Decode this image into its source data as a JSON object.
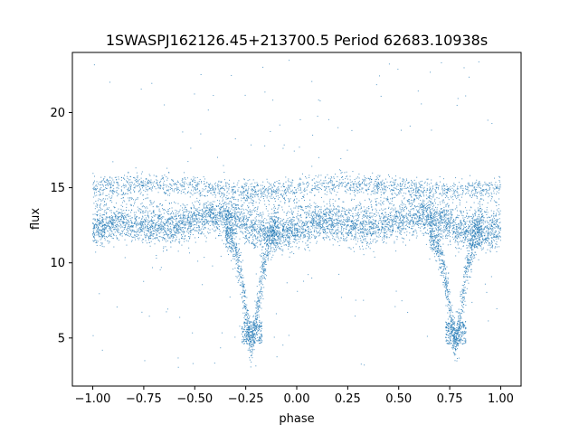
{
  "chart_data": {
    "type": "scatter",
    "title": "1SWASPJ162126.45+213700.5 Period 62683.10938s",
    "xlabel": "phase",
    "ylabel": "flux",
    "xlim": [
      -1.1,
      1.1
    ],
    "ylim": [
      1.8,
      24.0
    ],
    "x_ticks": [
      -1.0,
      -0.75,
      -0.5,
      -0.25,
      0.0,
      0.25,
      0.5,
      0.75,
      1.0
    ],
    "x_tick_labels": [
      "−1.00",
      "−0.75",
      "−0.50",
      "−0.25",
      "0.00",
      "0.25",
      "0.50",
      "0.75",
      "1.00"
    ],
    "y_ticks": [
      5,
      10,
      15,
      20
    ],
    "y_tick_labels": [
      "5",
      "10",
      "15",
      "20"
    ],
    "grid": false,
    "marker_color": "#1f77b4",
    "series": [
      {
        "description_of_shape": "phase-folded light curve, plotted twice over phase -1 to 1",
        "upper_band": {
          "flux_center": 15.0,
          "spread": 0.35,
          "phase_range": [
            -1.0,
            1.0
          ]
        },
        "main_band": {
          "flux_center": 12.5,
          "spread": 0.6,
          "phase_range": [
            -1.0,
            1.0
          ]
        },
        "dip": {
          "phase_center": [
            -0.22,
            0.78
          ],
          "flux_minimum": 4.6,
          "flux_baseline": 12.3,
          "width": 0.13
        },
        "outliers_flux_range": [
          2.8,
          23.5
        ]
      }
    ]
  }
}
